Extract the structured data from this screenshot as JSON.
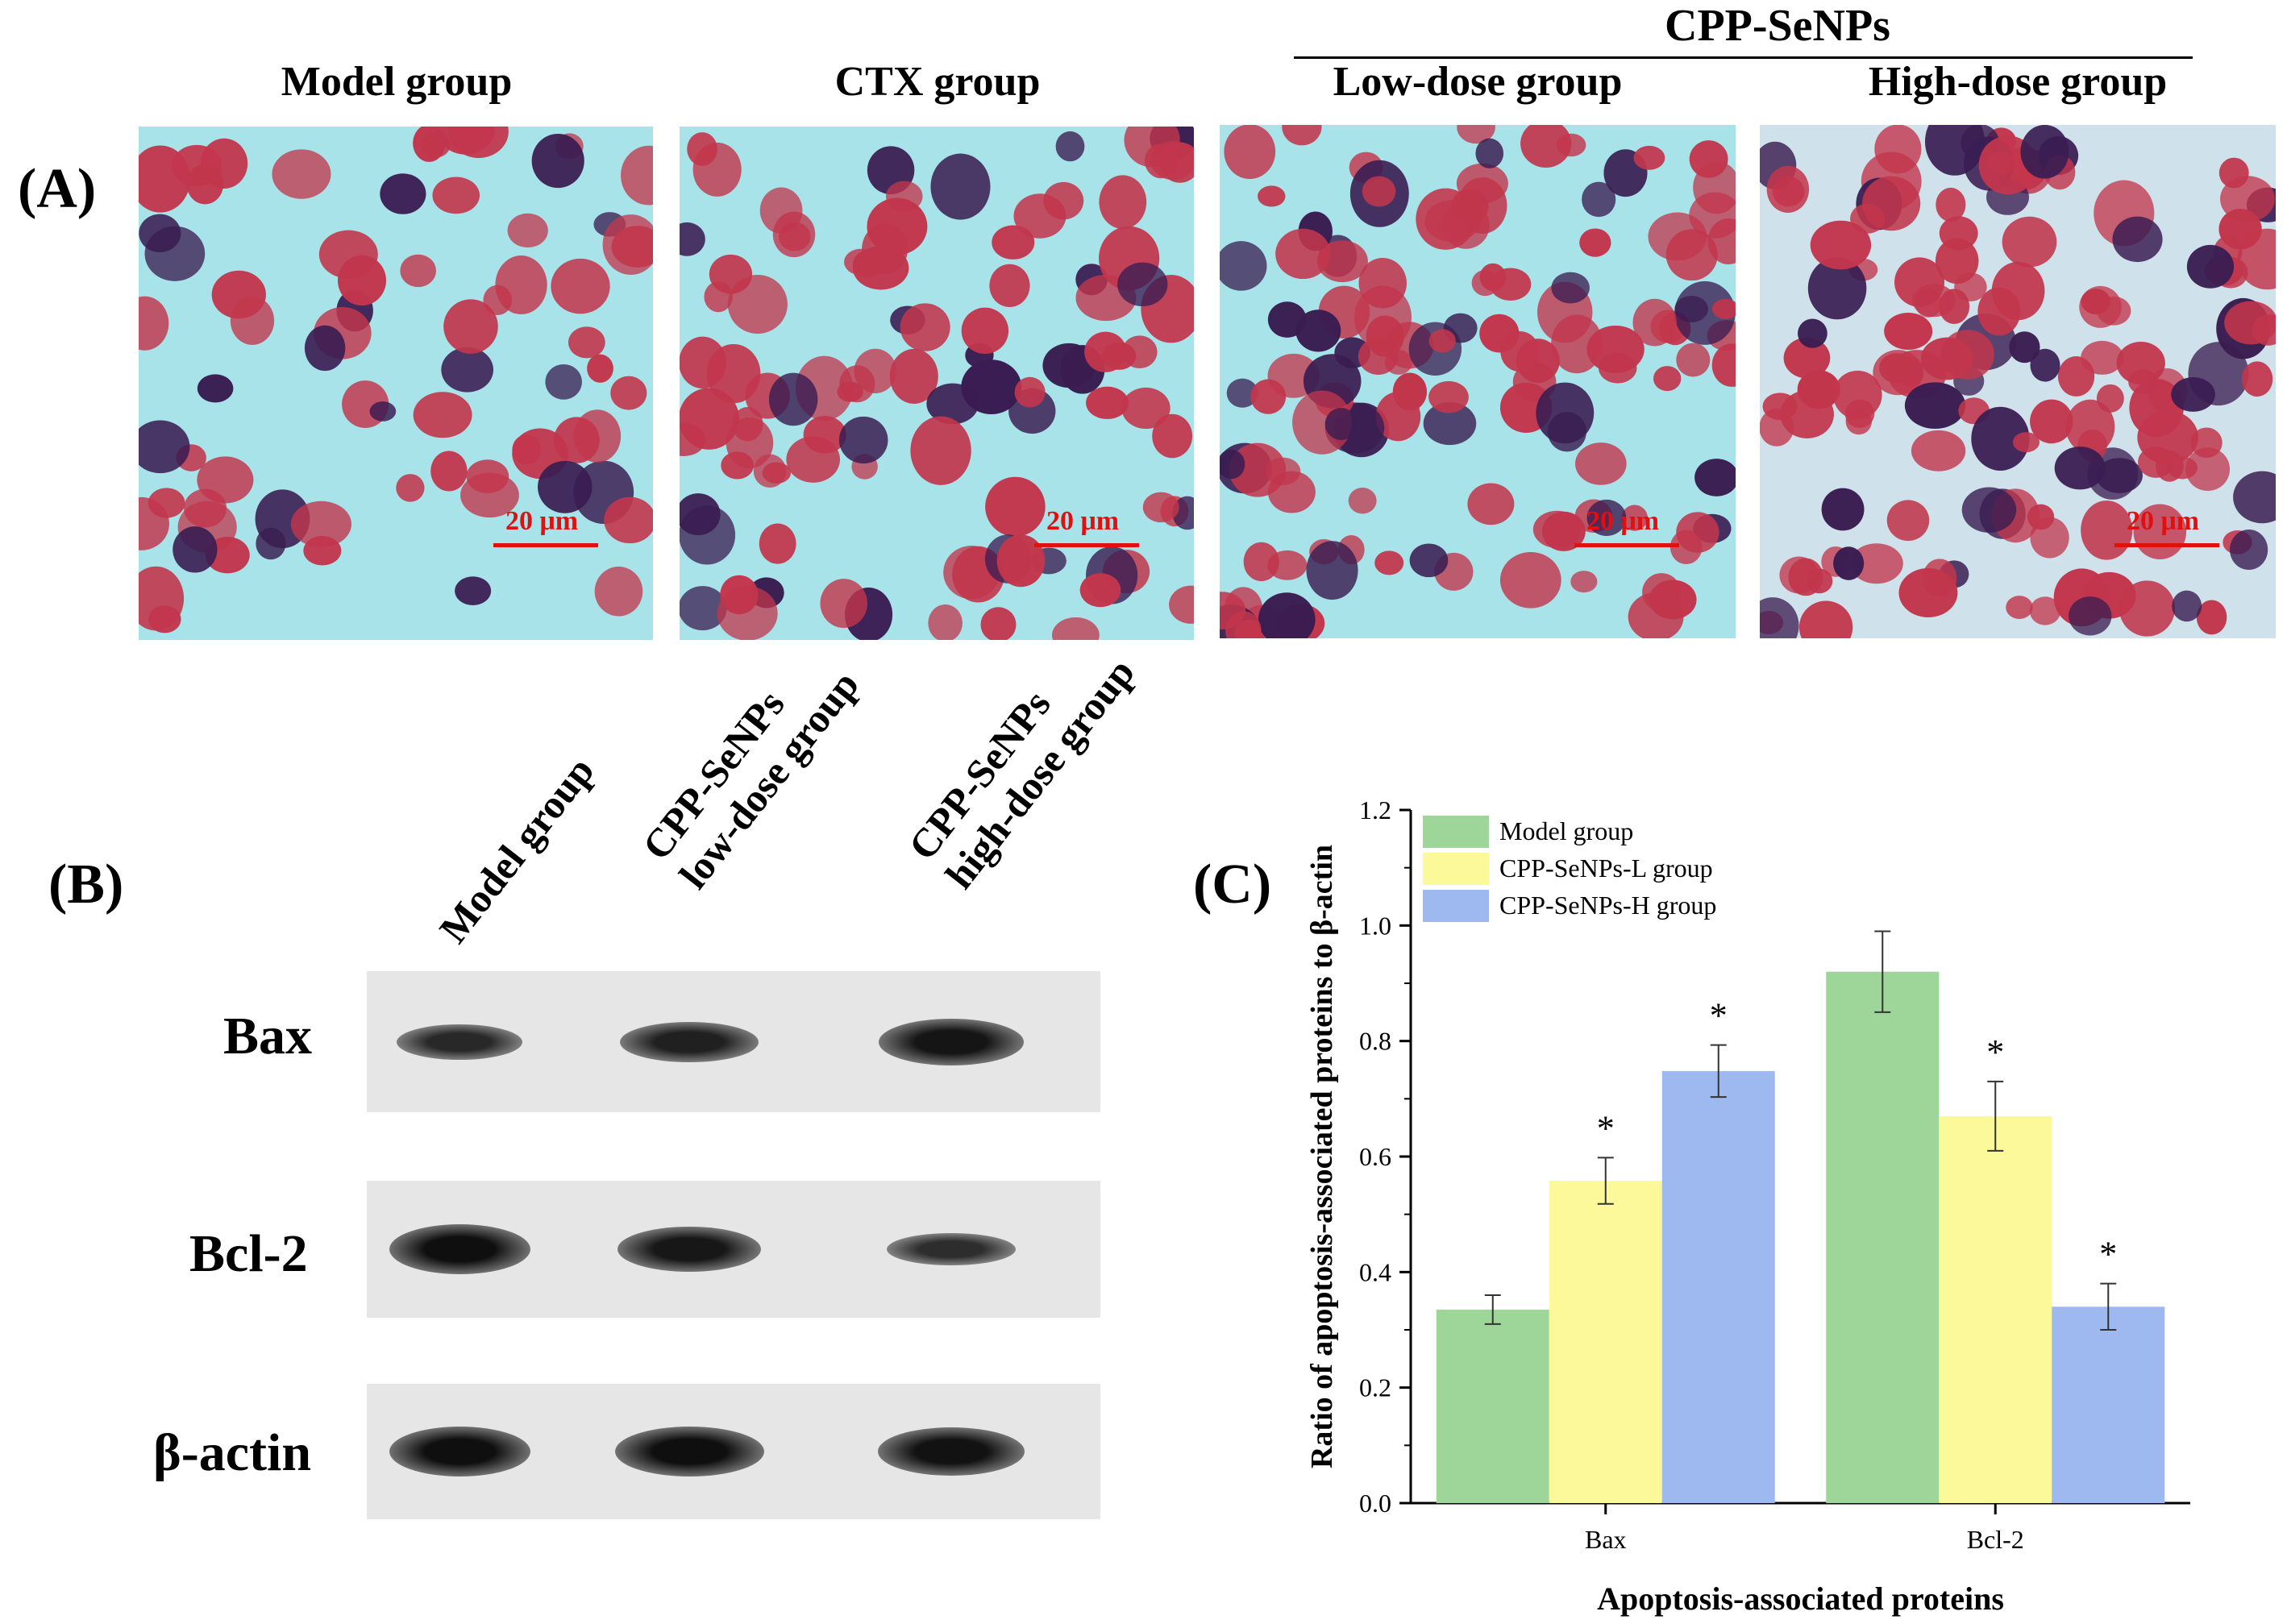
{
  "panel_a": {
    "label": "(A)",
    "header_group": "CPP-SeNPs",
    "titles": [
      "Model group",
      "CTX group",
      "Low-dose group",
      "High-dose group"
    ],
    "scale_bar": "20 μm",
    "colors": {
      "background": "#a9e3ea",
      "cell": "#c2364c",
      "nucleus": "#3a1d52",
      "scale": "#e01010"
    }
  },
  "panel_b": {
    "label": "(B)",
    "lanes": [
      {
        "line1": "Model group",
        "line2": ""
      },
      {
        "line1": "CPP-SeNPs",
        "line2": "low-dose group"
      },
      {
        "line1": "CPP-SeNPs",
        "line2": "high-dose group"
      }
    ],
    "rows": [
      {
        "label": "Bax",
        "intensities": [
          0.55,
          0.7,
          0.9
        ]
      },
      {
        "label": "Bcl-2",
        "intensities": [
          1.0,
          0.85,
          0.45
        ]
      },
      {
        "label": "β-actin",
        "intensities": [
          1.0,
          1.0,
          0.95
        ]
      }
    ]
  },
  "panel_c": {
    "label": "(C)"
  },
  "chart_data": {
    "type": "bar",
    "title": "",
    "categories": [
      "Bax",
      "Bcl-2"
    ],
    "series": [
      {
        "name": "Model group",
        "color": "#9ed69a",
        "values": [
          0.335,
          0.92
        ],
        "errors": [
          0.025,
          0.07
        ],
        "significant": [
          false,
          false
        ]
      },
      {
        "name": "CPP-SeNPs-L group",
        "color": "#fbf99a",
        "values": [
          0.558,
          0.67
        ],
        "errors": [
          0.04,
          0.06
        ],
        "significant": [
          true,
          true
        ]
      },
      {
        "name": "CPP-SeNPs-H group",
        "color": "#9eb8f0",
        "values": [
          0.748,
          0.34
        ],
        "errors": [
          0.045,
          0.04
        ],
        "significant": [
          true,
          true
        ]
      }
    ],
    "significance_marker": "*",
    "xlabel": "Apoptosis-associated proteins",
    "ylabel": "Ratio of apoptosis-associated proteins to β-actin",
    "ylim": [
      0.0,
      1.2
    ],
    "yticks": [
      "0.0",
      "0.2",
      "0.4",
      "0.6",
      "0.8",
      "1.0",
      "1.2"
    ],
    "legend_position": "top-left",
    "grid": false
  }
}
